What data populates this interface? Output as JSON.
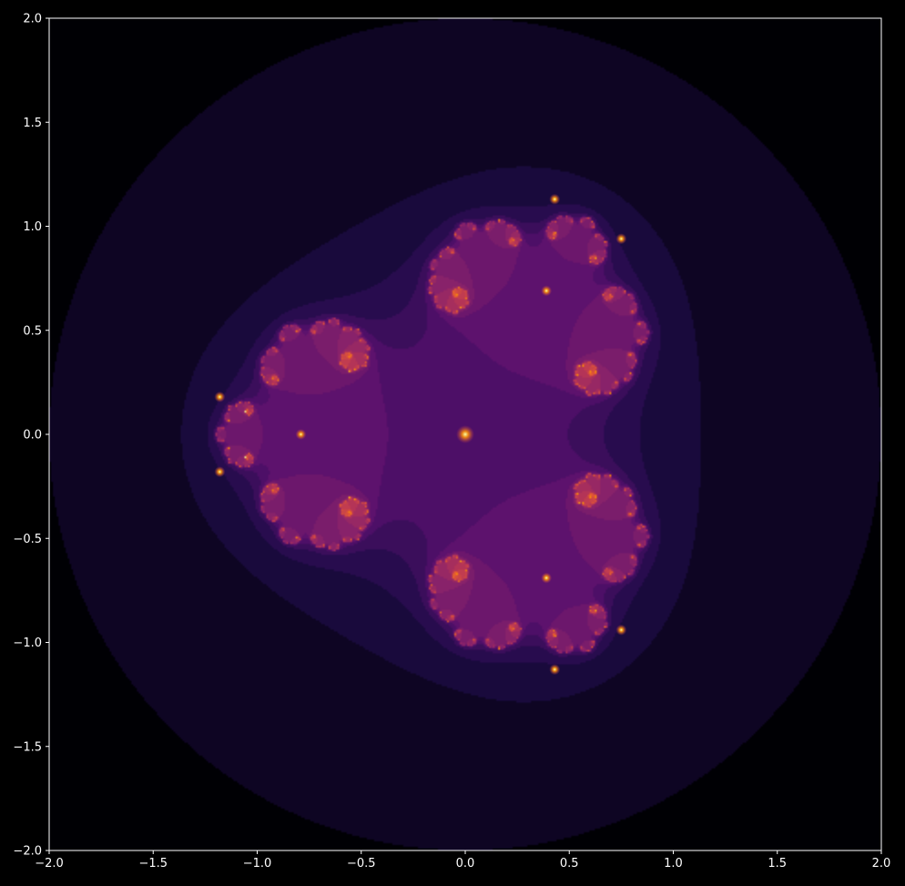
{
  "chart_data": {
    "type": "heatmap",
    "description_kind": "fractal",
    "title": "",
    "xlabel": "",
    "ylabel": "",
    "xlim": [
      -2.0,
      2.0
    ],
    "ylim": [
      -2.0,
      2.0
    ],
    "grid": false,
    "colormap": "inferno",
    "x_ticks": [
      "−2.0",
      "−1.5",
      "−1.0",
      "−0.5",
      "0.0",
      "0.5",
      "1.0",
      "1.5",
      "2.0"
    ],
    "y_ticks": [
      "2.0",
      "1.5",
      "1.0",
      "0.5",
      "0.0",
      "−0.5",
      "−1.0",
      "−1.5",
      "−2.0"
    ],
    "x_tick_values": [
      -2.0,
      -1.5,
      -1.0,
      -0.5,
      0.0,
      0.5,
      1.0,
      1.5,
      2.0
    ],
    "y_tick_values": [
      2.0,
      1.5,
      1.0,
      0.5,
      0.0,
      -0.5,
      -1.0,
      -1.5,
      -2.0
    ],
    "branch_points": [
      {
        "x": 0.0,
        "y": 0.0
      },
      {
        "x": -0.79,
        "y": 0.0
      },
      {
        "x": 0.39,
        "y": 0.69
      },
      {
        "x": 0.39,
        "y": -0.69
      },
      {
        "x": -1.18,
        "y": 0.18
      },
      {
        "x": -1.18,
        "y": -0.18
      },
      {
        "x": 0.43,
        "y": 1.13
      },
      {
        "x": 0.75,
        "y": 0.94
      },
      {
        "x": 0.43,
        "y": -1.13
      },
      {
        "x": 0.75,
        "y": -0.94
      }
    ],
    "colors": {
      "background": "#000000",
      "axes": "#ffffff",
      "low": "#000004",
      "mid": "#56106e",
      "high": "#f98e09"
    }
  }
}
